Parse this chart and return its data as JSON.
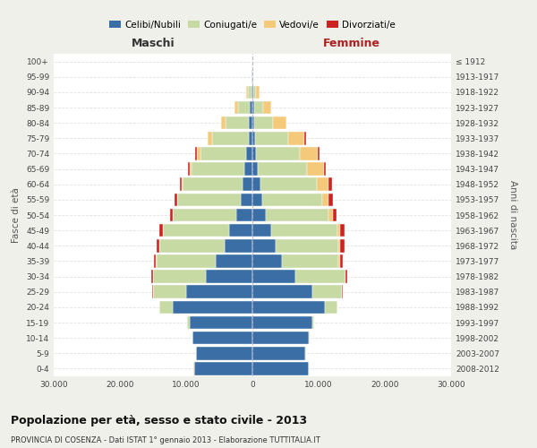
{
  "age_groups": [
    "0-4",
    "5-9",
    "10-14",
    "15-19",
    "20-24",
    "25-29",
    "30-34",
    "35-39",
    "40-44",
    "45-49",
    "50-54",
    "55-59",
    "60-64",
    "65-69",
    "70-74",
    "75-79",
    "80-84",
    "85-89",
    "90-94",
    "95-99",
    "100+"
  ],
  "birth_years": [
    "2008-2012",
    "2003-2007",
    "1998-2002",
    "1993-1997",
    "1988-1992",
    "1983-1987",
    "1978-1982",
    "1973-1977",
    "1968-1972",
    "1963-1967",
    "1958-1962",
    "1953-1957",
    "1948-1952",
    "1943-1947",
    "1938-1942",
    "1933-1937",
    "1928-1932",
    "1923-1927",
    "1918-1922",
    "1913-1917",
    "≤ 1912"
  ],
  "males": {
    "celibi": [
      8800,
      8500,
      9000,
      9500,
      12000,
      10000,
      7000,
      5500,
      4200,
      3500,
      2500,
      1800,
      1500,
      1200,
      900,
      600,
      500,
      400,
      200,
      80,
      50
    ],
    "coniugati": [
      50,
      50,
      100,
      300,
      2000,
      5000,
      8000,
      9000,
      9800,
      10000,
      9500,
      9500,
      9000,
      8000,
      7000,
      5500,
      3500,
      1800,
      500,
      60,
      20
    ],
    "vedovi": [
      5,
      5,
      5,
      5,
      10,
      20,
      20,
      30,
      50,
      60,
      80,
      100,
      200,
      300,
      500,
      600,
      700,
      500,
      200,
      30,
      5
    ],
    "divorziati": [
      2,
      2,
      5,
      10,
      50,
      100,
      200,
      350,
      450,
      500,
      400,
      350,
      300,
      200,
      200,
      100,
      50,
      20,
      10,
      5,
      2
    ]
  },
  "females": {
    "nubili": [
      8500,
      8000,
      8500,
      9000,
      11000,
      9000,
      6500,
      4500,
      3500,
      2800,
      2000,
      1500,
      1200,
      800,
      600,
      400,
      300,
      250,
      150,
      60,
      40
    ],
    "coniugate": [
      40,
      50,
      100,
      300,
      1800,
      4500,
      7500,
      8500,
      9500,
      10000,
      9500,
      9000,
      8500,
      7500,
      6500,
      5000,
      2800,
      1400,
      400,
      40,
      15
    ],
    "vedove": [
      5,
      5,
      5,
      10,
      40,
      80,
      100,
      200,
      300,
      400,
      600,
      1000,
      1800,
      2500,
      2800,
      2500,
      2000,
      1200,
      500,
      60,
      10
    ],
    "divorziate": [
      2,
      2,
      5,
      10,
      50,
      100,
      250,
      400,
      600,
      700,
      650,
      600,
      500,
      300,
      250,
      150,
      80,
      30,
      10,
      5,
      2
    ]
  },
  "colors": {
    "celibi": "#3a6ea5",
    "coniugati": "#c8daa4",
    "vedovi": "#f5c97a",
    "divorziati": "#cc2222"
  },
  "legend_labels": [
    "Celibi/Nubili",
    "Coniugati/e",
    "Vedovi/e",
    "Divorziati/e"
  ],
  "title": "Popolazione per età, sesso e stato civile - 2013",
  "subtitle": "PROVINCIA DI COSENZA - Dati ISTAT 1° gennaio 2013 - Elaborazione TUTTITALIA.IT",
  "maschi_label": "Maschi",
  "femmine_label": "Femmine",
  "ylabel": "Fasce di età",
  "ylabel_right": "Anni di nascita",
  "xlim": 30000,
  "xtick_vals": [
    -30000,
    -20000,
    -10000,
    0,
    10000,
    20000,
    30000
  ],
  "xtick_labels": [
    "30.000",
    "20.000",
    "10.000",
    "0",
    "10.000",
    "20.000",
    "30.000"
  ],
  "background_color": "#f0f0eb",
  "plot_background": "#ffffff",
  "grid_color": "#cccccc",
  "maschi_color": "#333333",
  "femmine_color": "#aa2222"
}
